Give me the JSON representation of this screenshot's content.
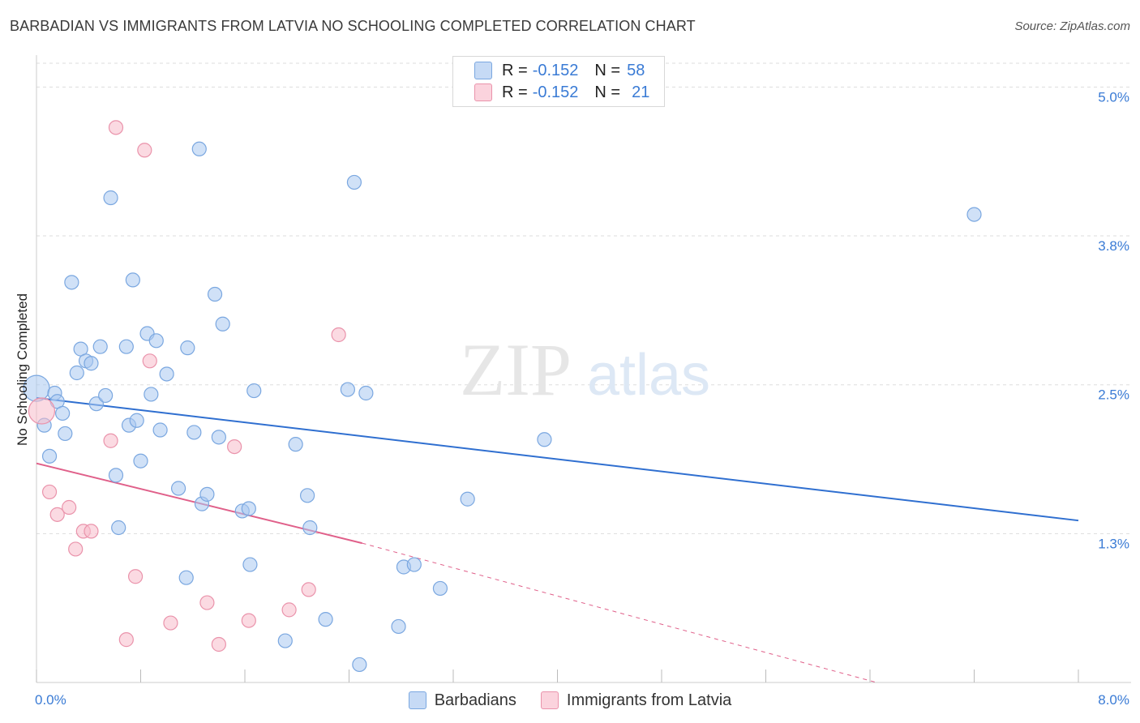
{
  "title": "BARBADIAN VS IMMIGRANTS FROM LATVIA NO SCHOOLING COMPLETED CORRELATION CHART",
  "source": "Source: ZipAtlas.com",
  "watermark": {
    "zip": "ZIP",
    "atlas": "atlas"
  },
  "legend": {
    "rows": [
      {
        "r_label": "R =",
        "r_value": "-0.152",
        "n_label": "N =",
        "n_value": "58"
      },
      {
        "r_label": "R =",
        "r_value": "-0.152",
        "n_label": "N =",
        "n_value": "21"
      }
    ]
  },
  "bottom_legend": {
    "barbadians": "Barbadians",
    "latvia": "Immigrants from Latvia"
  },
  "colors": {
    "blue_fill": "#a9c8f0",
    "blue_stroke": "#7aa7e0",
    "blue_line": "#2f6fd0",
    "pink_fill": "#f7bccb",
    "pink_stroke": "#ea93ab",
    "pink_line": "#e0608a",
    "tick_text": "#3a7bd5",
    "grid": "#dddddd"
  },
  "chart_data": {
    "type": "scatter",
    "title": "BARBADIAN VS IMMIGRANTS FROM LATVIA NO SCHOOLING COMPLETED CORRELATION CHART",
    "xlabel": "",
    "ylabel": "No Schooling Completed",
    "xlim": [
      0,
      8.0
    ],
    "ylim": [
      0,
      5.2
    ],
    "y_ticks": [
      {
        "value": 1.25,
        "label": "1.3%"
      },
      {
        "value": 2.5,
        "label": "2.5%"
      },
      {
        "value": 3.75,
        "label": "3.8%"
      },
      {
        "value": 5.0,
        "label": "5.0%"
      }
    ],
    "x_tick_labels": {
      "min": "0.0%",
      "max": "8.0%"
    },
    "grid": true,
    "legend_position": "top-center",
    "series": [
      {
        "name": "Barbadians",
        "points": [
          [
            0.0,
            2.47
          ],
          [
            0.06,
            2.16
          ],
          [
            0.1,
            1.9
          ],
          [
            0.14,
            2.43
          ],
          [
            0.16,
            2.36
          ],
          [
            0.2,
            2.26
          ],
          [
            0.22,
            2.09
          ],
          [
            0.27,
            3.36
          ],
          [
            0.31,
            2.6
          ],
          [
            0.34,
            2.8
          ],
          [
            0.38,
            2.7
          ],
          [
            0.42,
            2.68
          ],
          [
            0.46,
            2.34
          ],
          [
            0.49,
            2.82
          ],
          [
            0.53,
            2.41
          ],
          [
            0.57,
            4.07
          ],
          [
            0.61,
            1.74
          ],
          [
            0.63,
            1.3
          ],
          [
            0.69,
            2.82
          ],
          [
            0.71,
            2.16
          ],
          [
            0.74,
            3.38
          ],
          [
            0.77,
            2.2
          ],
          [
            0.8,
            1.86
          ],
          [
            0.85,
            2.93
          ],
          [
            0.88,
            2.42
          ],
          [
            0.92,
            2.87
          ],
          [
            0.95,
            2.12
          ],
          [
            1.0,
            2.59
          ],
          [
            1.09,
            1.63
          ],
          [
            1.15,
            0.88
          ],
          [
            1.16,
            2.81
          ],
          [
            1.21,
            2.1
          ],
          [
            1.25,
            4.48
          ],
          [
            1.27,
            1.5
          ],
          [
            1.31,
            1.58
          ],
          [
            1.37,
            3.26
          ],
          [
            1.4,
            2.06
          ],
          [
            1.43,
            3.01
          ],
          [
            1.64,
            0.99
          ],
          [
            1.58,
            1.44
          ],
          [
            1.63,
            1.46
          ],
          [
            1.67,
            2.45
          ],
          [
            1.91,
            0.35
          ],
          [
            1.99,
            2.0
          ],
          [
            2.08,
            1.57
          ],
          [
            2.1,
            1.3
          ],
          [
            2.22,
            0.53
          ],
          [
            2.39,
            2.46
          ],
          [
            2.44,
            4.2
          ],
          [
            2.48,
            0.15
          ],
          [
            2.53,
            2.43
          ],
          [
            2.78,
            0.47
          ],
          [
            2.82,
            0.97
          ],
          [
            2.9,
            0.99
          ],
          [
            3.1,
            0.79
          ],
          [
            3.31,
            1.54
          ],
          [
            3.9,
            2.04
          ],
          [
            7.2,
            3.93
          ]
        ]
      },
      {
        "name": "Immigrants from Latvia",
        "points": [
          [
            0.04,
            2.28
          ],
          [
            0.1,
            1.6
          ],
          [
            0.16,
            1.41
          ],
          [
            0.25,
            1.47
          ],
          [
            0.3,
            1.12
          ],
          [
            0.36,
            1.27
          ],
          [
            0.42,
            1.27
          ],
          [
            0.57,
            2.03
          ],
          [
            0.61,
            4.66
          ],
          [
            0.69,
            0.36
          ],
          [
            0.76,
            0.89
          ],
          [
            0.83,
            4.47
          ],
          [
            0.87,
            2.7
          ],
          [
            1.03,
            0.5
          ],
          [
            1.31,
            0.67
          ],
          [
            1.4,
            0.32
          ],
          [
            1.52,
            1.98
          ],
          [
            1.63,
            0.52
          ],
          [
            1.94,
            0.61
          ],
          [
            2.09,
            0.78
          ],
          [
            2.32,
            2.92
          ]
        ]
      }
    ],
    "trend_lines": [
      {
        "series": "Barbadians",
        "x": [
          0.0,
          8.0
        ],
        "y": [
          2.39,
          1.36
        ],
        "style": "solid"
      },
      {
        "series": "Immigrants from Latvia",
        "x": [
          0.0,
          2.5
        ],
        "y": [
          1.84,
          1.17
        ],
        "style": "solid"
      },
      {
        "series": "Immigrants from Latvia",
        "x": [
          2.5,
          6.45
        ],
        "y": [
          1.17,
          0.0
        ],
        "style": "dashed"
      }
    ]
  }
}
